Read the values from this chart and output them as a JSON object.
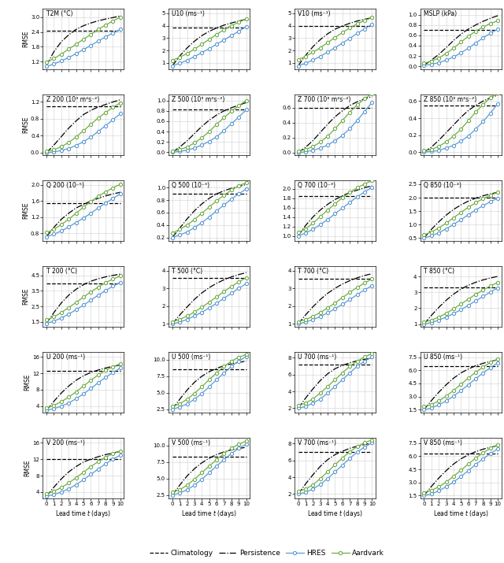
{
  "lead_times": [
    0,
    1,
    2,
    3,
    4,
    5,
    6,
    7,
    8,
    9,
    10
  ],
  "subplots": [
    {
      "title": "T2M (°C)",
      "ylim": [
        0.9,
        3.35
      ],
      "yticks": [
        1.2,
        1.8,
        2.4,
        3.0
      ],
      "climatology_val": 2.45,
      "persistence": [
        1.05,
        1.6,
        2.0,
        2.28,
        2.5,
        2.65,
        2.76,
        2.85,
        2.92,
        2.98,
        3.05
      ],
      "hres": [
        1.0,
        1.1,
        1.22,
        1.36,
        1.52,
        1.68,
        1.85,
        2.03,
        2.2,
        2.35,
        2.5
      ],
      "aardvark": [
        1.18,
        1.32,
        1.5,
        1.7,
        1.9,
        2.1,
        2.3,
        2.5,
        2.68,
        2.84,
        3.0
      ]
    },
    {
      "title": "U10 (ms⁻¹)",
      "ylim": [
        0.5,
        5.4
      ],
      "yticks": [
        1.0,
        2.0,
        3.0,
        4.0,
        5.0
      ],
      "climatology_val": 3.85,
      "persistence": [
        0.75,
        1.55,
        2.2,
        2.75,
        3.2,
        3.55,
        3.82,
        4.05,
        4.22,
        4.38,
        4.52
      ],
      "hres": [
        0.75,
        0.95,
        1.2,
        1.5,
        1.82,
        2.15,
        2.5,
        2.85,
        3.2,
        3.55,
        3.92
      ],
      "aardvark": [
        1.2,
        1.45,
        1.75,
        2.1,
        2.5,
        2.9,
        3.3,
        3.68,
        4.0,
        4.28,
        4.55
      ]
    },
    {
      "title": "V10 (ms⁻¹)",
      "ylim": [
        0.5,
        5.4
      ],
      "yticks": [
        1.0,
        2.0,
        3.0,
        4.0,
        5.0
      ],
      "climatology_val": 4.0,
      "persistence": [
        0.75,
        1.6,
        2.3,
        2.88,
        3.35,
        3.72,
        3.98,
        4.2,
        4.38,
        4.52,
        4.65
      ],
      "hres": [
        0.75,
        0.95,
        1.22,
        1.52,
        1.87,
        2.22,
        2.6,
        2.98,
        3.38,
        3.75,
        4.1
      ],
      "aardvark": [
        1.25,
        1.52,
        1.85,
        2.22,
        2.63,
        3.05,
        3.45,
        3.82,
        4.15,
        4.42,
        4.65
      ]
    },
    {
      "title": "MSLP (kPa)",
      "ylim": [
        -0.05,
        1.12
      ],
      "yticks": [
        0.0,
        0.2,
        0.4,
        0.6,
        0.8,
        1.0
      ],
      "climatology_val": 0.7,
      "persistence": [
        0.02,
        0.12,
        0.23,
        0.36,
        0.5,
        0.62,
        0.72,
        0.8,
        0.87,
        0.93,
        0.98
      ],
      "hres": [
        0.02,
        0.04,
        0.07,
        0.12,
        0.18,
        0.26,
        0.35,
        0.45,
        0.55,
        0.64,
        0.72
      ],
      "aardvark": [
        0.06,
        0.1,
        0.16,
        0.25,
        0.35,
        0.47,
        0.58,
        0.68,
        0.76,
        0.83,
        0.88
      ]
    },
    {
      "title": "Z 200 (10³ m²s⁻²)",
      "ylim": [
        -0.05,
        1.38
      ],
      "yticks": [
        0.0,
        0.4,
        0.8,
        1.2
      ],
      "climatology_val": 1.1,
      "persistence": [
        0.0,
        0.18,
        0.38,
        0.58,
        0.75,
        0.9,
        1.0,
        1.08,
        1.14,
        1.2,
        1.25
      ],
      "hres": [
        0.0,
        0.02,
        0.05,
        0.1,
        0.17,
        0.26,
        0.37,
        0.5,
        0.64,
        0.78,
        0.92
      ],
      "aardvark": [
        0.03,
        0.07,
        0.14,
        0.24,
        0.37,
        0.52,
        0.67,
        0.82,
        0.95,
        1.07,
        1.18
      ]
    },
    {
      "title": "Z 500 (10³ m²s⁻²)",
      "ylim": [
        -0.05,
        1.12
      ],
      "yticks": [
        0.0,
        0.2,
        0.4,
        0.6,
        0.8,
        1.0
      ],
      "climatology_val": 0.82,
      "persistence": [
        0.0,
        0.1,
        0.22,
        0.36,
        0.5,
        0.62,
        0.72,
        0.8,
        0.86,
        0.91,
        0.96
      ],
      "hres": [
        0.0,
        0.015,
        0.04,
        0.08,
        0.14,
        0.21,
        0.3,
        0.42,
        0.55,
        0.68,
        0.82
      ],
      "aardvark": [
        0.02,
        0.05,
        0.1,
        0.18,
        0.28,
        0.4,
        0.54,
        0.67,
        0.79,
        0.9,
        1.0
      ]
    },
    {
      "title": "Z 700 (10³ m²s⁻²)",
      "ylim": [
        -0.03,
        0.78
      ],
      "yticks": [
        0.0,
        0.2,
        0.4,
        0.6
      ],
      "climatology_val": 0.6,
      "persistence": [
        0.0,
        0.07,
        0.16,
        0.27,
        0.38,
        0.48,
        0.56,
        0.63,
        0.68,
        0.72,
        0.75
      ],
      "hres": [
        0.0,
        0.01,
        0.03,
        0.06,
        0.1,
        0.16,
        0.23,
        0.32,
        0.43,
        0.55,
        0.67
      ],
      "aardvark": [
        0.02,
        0.04,
        0.08,
        0.14,
        0.22,
        0.32,
        0.43,
        0.54,
        0.64,
        0.72,
        0.79
      ]
    },
    {
      "title": "Z 850 (10³ m²s⁻²)",
      "ylim": [
        -0.03,
        0.68
      ],
      "yticks": [
        0.0,
        0.2,
        0.4,
        0.6
      ],
      "climatology_val": 0.55,
      "persistence": [
        0.0,
        0.06,
        0.14,
        0.23,
        0.32,
        0.41,
        0.49,
        0.55,
        0.6,
        0.64,
        0.67
      ],
      "hres": [
        0.0,
        0.01,
        0.02,
        0.05,
        0.08,
        0.13,
        0.19,
        0.27,
        0.36,
        0.46,
        0.57
      ],
      "aardvark": [
        0.02,
        0.03,
        0.07,
        0.12,
        0.19,
        0.27,
        0.37,
        0.47,
        0.56,
        0.64,
        0.7
      ]
    },
    {
      "title": "Q 200 (10⁻⁵)",
      "ylim": [
        0.62,
        2.12
      ],
      "yticks": [
        0.8,
        1.2,
        1.6,
        2.0
      ],
      "climatology_val": 1.55,
      "persistence": [
        0.72,
        0.95,
        1.15,
        1.3,
        1.43,
        1.52,
        1.6,
        1.67,
        1.73,
        1.78,
        1.82
      ],
      "hres": [
        0.72,
        0.78,
        0.86,
        0.96,
        1.07,
        1.18,
        1.3,
        1.43,
        1.55,
        1.67,
        1.78
      ],
      "aardvark": [
        0.82,
        0.9,
        1.02,
        1.15,
        1.3,
        1.45,
        1.59,
        1.72,
        1.83,
        1.93,
        2.02
      ]
    },
    {
      "title": "Q 500 (10⁻³)",
      "ylim": [
        0.15,
        1.12
      ],
      "yticks": [
        0.2,
        0.4,
        0.6,
        0.8,
        1.0
      ],
      "climatology_val": 0.9,
      "persistence": [
        0.2,
        0.35,
        0.5,
        0.63,
        0.74,
        0.83,
        0.9,
        0.95,
        0.99,
        1.02,
        1.05
      ],
      "hres": [
        0.2,
        0.24,
        0.29,
        0.36,
        0.44,
        0.53,
        0.63,
        0.72,
        0.82,
        0.9,
        0.98
      ],
      "aardvark": [
        0.27,
        0.33,
        0.4,
        0.49,
        0.59,
        0.69,
        0.79,
        0.88,
        0.96,
        1.03,
        1.08
      ]
    },
    {
      "title": "Q 700 (10⁻³)",
      "ylim": [
        0.9,
        2.18
      ],
      "yticks": [
        1.0,
        1.2,
        1.4,
        1.6,
        1.8,
        2.0
      ],
      "climatology_val": 1.85,
      "persistence": [
        1.0,
        1.22,
        1.4,
        1.55,
        1.67,
        1.77,
        1.85,
        1.92,
        1.97,
        2.02,
        2.06
      ],
      "hres": [
        1.0,
        1.06,
        1.14,
        1.24,
        1.35,
        1.47,
        1.59,
        1.71,
        1.83,
        1.93,
        2.03
      ],
      "aardvark": [
        1.07,
        1.15,
        1.27,
        1.41,
        1.55,
        1.68,
        1.81,
        1.92,
        2.02,
        2.1,
        2.17
      ]
    },
    {
      "title": "Q 850 (10⁻³)",
      "ylim": [
        0.4,
        2.65
      ],
      "yticks": [
        0.5,
        1.0,
        1.5,
        2.0,
        2.5
      ],
      "climatology_val": 2.0,
      "persistence": [
        0.5,
        0.82,
        1.1,
        1.35,
        1.56,
        1.73,
        1.87,
        1.98,
        2.07,
        2.14,
        2.2
      ],
      "hres": [
        0.5,
        0.58,
        0.69,
        0.84,
        1.0,
        1.18,
        1.36,
        1.54,
        1.7,
        1.85,
        1.98
      ],
      "aardvark": [
        0.62,
        0.72,
        0.87,
        1.05,
        1.25,
        1.45,
        1.64,
        1.81,
        1.96,
        2.09,
        2.2
      ]
    },
    {
      "title": "T 200 (°C)",
      "ylim": [
        1.2,
        5.1
      ],
      "yticks": [
        1.5,
        2.5,
        3.5,
        4.5
      ],
      "climatology_val": 4.0,
      "persistence": [
        1.4,
        2.1,
        2.72,
        3.22,
        3.6,
        3.9,
        4.12,
        4.28,
        4.4,
        4.5,
        4.58
      ],
      "hres": [
        1.4,
        1.55,
        1.75,
        2.0,
        2.28,
        2.58,
        2.9,
        3.22,
        3.52,
        3.8,
        4.05
      ],
      "aardvark": [
        1.62,
        1.82,
        2.1,
        2.42,
        2.75,
        3.1,
        3.44,
        3.74,
        4.02,
        4.26,
        4.46
      ]
    },
    {
      "title": "T 500 (°C)",
      "ylim": [
        0.85,
        4.25
      ],
      "yticks": [
        1.0,
        2.0,
        3.0,
        4.0
      ],
      "climatology_val": 3.6,
      "persistence": [
        1.0,
        1.5,
        1.95,
        2.38,
        2.74,
        3.04,
        3.28,
        3.48,
        3.64,
        3.77,
        3.88
      ],
      "hres": [
        1.0,
        1.1,
        1.25,
        1.44,
        1.65,
        1.9,
        2.16,
        2.44,
        2.72,
        3.0,
        3.26
      ],
      "aardvark": [
        1.12,
        1.25,
        1.44,
        1.67,
        1.94,
        2.22,
        2.52,
        2.82,
        3.1,
        3.36,
        3.6
      ]
    },
    {
      "title": "T 700 (°C)",
      "ylim": [
        0.85,
        4.25
      ],
      "yticks": [
        1.0,
        2.0,
        3.0,
        4.0
      ],
      "climatology_val": 3.55,
      "persistence": [
        1.0,
        1.5,
        1.96,
        2.37,
        2.72,
        3.0,
        3.24,
        3.43,
        3.59,
        3.72,
        3.82
      ],
      "hres": [
        1.0,
        1.1,
        1.24,
        1.41,
        1.62,
        1.85,
        2.1,
        2.37,
        2.64,
        2.91,
        3.15
      ],
      "aardvark": [
        1.12,
        1.24,
        1.42,
        1.64,
        1.9,
        2.18,
        2.48,
        2.77,
        3.05,
        3.3,
        3.52
      ]
    },
    {
      "title": "T 850 (°C)",
      "ylim": [
        0.85,
        4.65
      ],
      "yticks": [
        1.0,
        2.0,
        3.0,
        4.0
      ],
      "climatology_val": 3.3,
      "persistence": [
        1.0,
        1.55,
        2.05,
        2.5,
        2.88,
        3.2,
        3.44,
        3.63,
        3.78,
        3.9,
        4.0
      ],
      "hres": [
        1.0,
        1.1,
        1.25,
        1.44,
        1.66,
        1.91,
        2.18,
        2.46,
        2.74,
        3.02,
        3.28
      ],
      "aardvark": [
        1.12,
        1.25,
        1.44,
        1.68,
        1.96,
        2.26,
        2.57,
        2.87,
        3.14,
        3.4,
        3.62
      ]
    },
    {
      "title": "U 200 (ms⁻¹)",
      "ylim": [
        2.5,
        17.2
      ],
      "yticks": [
        4.0,
        8.0,
        12.0,
        16.0
      ],
      "climatology_val": 12.5,
      "persistence": [
        3.0,
        5.2,
        7.2,
        8.9,
        10.3,
        11.4,
        12.2,
        12.8,
        13.3,
        13.7,
        14.0
      ],
      "hres": [
        3.0,
        3.4,
        4.0,
        4.8,
        5.8,
        7.0,
        8.3,
        9.7,
        11.0,
        12.2,
        13.3
      ],
      "aardvark": [
        3.6,
        4.2,
        5.1,
        6.2,
        7.5,
        8.9,
        10.3,
        11.6,
        12.7,
        13.6,
        14.3
      ]
    },
    {
      "title": "U 500 (ms⁻¹)",
      "ylim": [
        2.0,
        11.2
      ],
      "yticks": [
        2.5,
        5.0,
        7.5,
        10.0
      ],
      "climatology_val": 8.5,
      "persistence": [
        2.5,
        4.0,
        5.4,
        6.6,
        7.5,
        8.2,
        8.7,
        9.1,
        9.4,
        9.6,
        9.8
      ],
      "hres": [
        2.5,
        2.8,
        3.3,
        4.0,
        4.9,
        5.9,
        7.0,
        8.0,
        9.0,
        9.8,
        10.5
      ],
      "aardvark": [
        2.9,
        3.3,
        4.0,
        4.9,
        5.9,
        7.0,
        8.0,
        9.0,
        9.8,
        10.4,
        10.8
      ]
    },
    {
      "title": "U 700 (ms⁻¹)",
      "ylim": [
        1.5,
        8.7
      ],
      "yticks": [
        2.0,
        4.0,
        6.0,
        8.0
      ],
      "climatology_val": 7.2,
      "persistence": [
        2.0,
        3.2,
        4.3,
        5.3,
        6.1,
        6.7,
        7.1,
        7.4,
        7.65,
        7.82,
        7.95
      ],
      "hres": [
        2.0,
        2.2,
        2.6,
        3.1,
        3.8,
        4.6,
        5.4,
        6.2,
        7.0,
        7.6,
        8.1
      ],
      "aardvark": [
        2.3,
        2.6,
        3.1,
        3.8,
        4.6,
        5.4,
        6.2,
        7.0,
        7.6,
        8.1,
        8.5
      ]
    },
    {
      "title": "U 850 (ms⁻¹)",
      "ylim": [
        1.2,
        8.1
      ],
      "yticks": [
        1.5,
        3.0,
        4.5,
        6.0,
        7.5
      ],
      "climatology_val": 6.5,
      "persistence": [
        1.5,
        2.55,
        3.5,
        4.35,
        5.1,
        5.7,
        6.15,
        6.52,
        6.8,
        7.02,
        7.2
      ],
      "hres": [
        1.5,
        1.7,
        2.05,
        2.5,
        3.05,
        3.68,
        4.35,
        5.05,
        5.7,
        6.3,
        6.85
      ],
      "aardvark": [
        1.85,
        2.1,
        2.5,
        3.05,
        3.7,
        4.4,
        5.1,
        5.78,
        6.38,
        6.9,
        7.32
      ]
    },
    {
      "title": "V 200 (ms⁻¹)",
      "ylim": [
        2.5,
        17.2
      ],
      "yticks": [
        4.0,
        8.0,
        12.0,
        16.0
      ],
      "climatology_val": 12.0,
      "persistence": [
        3.0,
        5.2,
        7.2,
        8.9,
        10.2,
        11.3,
        12.0,
        12.6,
        13.1,
        13.5,
        13.9
      ],
      "hres": [
        3.0,
        3.4,
        4.0,
        4.8,
        5.8,
        7.0,
        8.3,
        9.6,
        10.9,
        12.0,
        13.0
      ],
      "aardvark": [
        3.6,
        4.2,
        5.1,
        6.2,
        7.5,
        8.8,
        10.2,
        11.4,
        12.5,
        13.3,
        14.0
      ]
    },
    {
      "title": "V 500 (ms⁻¹)",
      "ylim": [
        2.0,
        11.2
      ],
      "yticks": [
        2.5,
        5.0,
        7.5,
        10.0
      ],
      "climatology_val": 8.3,
      "persistence": [
        2.5,
        4.0,
        5.4,
        6.5,
        7.4,
        8.1,
        8.65,
        9.05,
        9.35,
        9.58,
        9.75
      ],
      "hres": [
        2.5,
        2.8,
        3.3,
        4.0,
        4.9,
        5.9,
        6.9,
        7.9,
        8.8,
        9.6,
        10.2
      ],
      "aardvark": [
        2.9,
        3.3,
        4.0,
        4.9,
        5.9,
        6.9,
        7.9,
        8.8,
        9.6,
        10.2,
        10.7
      ]
    },
    {
      "title": "V 700 (ms⁻¹)",
      "ylim": [
        1.5,
        8.7
      ],
      "yticks": [
        2.0,
        4.0,
        6.0,
        8.0
      ],
      "climatology_val": 7.0,
      "persistence": [
        2.0,
        3.2,
        4.3,
        5.3,
        6.1,
        6.7,
        7.1,
        7.45,
        7.7,
        7.9,
        8.05
      ],
      "hres": [
        2.0,
        2.2,
        2.6,
        3.15,
        3.85,
        4.65,
        5.45,
        6.25,
        7.0,
        7.6,
        8.1
      ],
      "aardvark": [
        2.3,
        2.6,
        3.1,
        3.85,
        4.65,
        5.5,
        6.3,
        7.05,
        7.65,
        8.1,
        8.45
      ]
    },
    {
      "title": "V 850 (ms⁻¹)",
      "ylim": [
        1.2,
        8.1
      ],
      "yticks": [
        1.5,
        3.0,
        4.5,
        6.0,
        7.5
      ],
      "climatology_val": 6.3,
      "persistence": [
        1.5,
        2.55,
        3.5,
        4.35,
        5.1,
        5.7,
        6.15,
        6.52,
        6.8,
        7.02,
        7.2
      ],
      "hres": [
        1.5,
        1.7,
        2.05,
        2.5,
        3.05,
        3.68,
        4.35,
        5.05,
        5.7,
        6.3,
        6.85
      ],
      "aardvark": [
        1.85,
        2.1,
        2.5,
        3.05,
        3.7,
        4.4,
        5.1,
        5.78,
        6.38,
        6.9,
        7.32
      ]
    }
  ],
  "hres_color": "#5b9bd5",
  "aardvark_color": "#70ad47",
  "climatology_color": "#000000",
  "persistence_color": "#000000",
  "marker": "o",
  "markersize": 3.0,
  "xlabel": "Lead time $t$ (days)",
  "ylabel": "RMSE",
  "nrows": 6,
  "ncols": 4
}
